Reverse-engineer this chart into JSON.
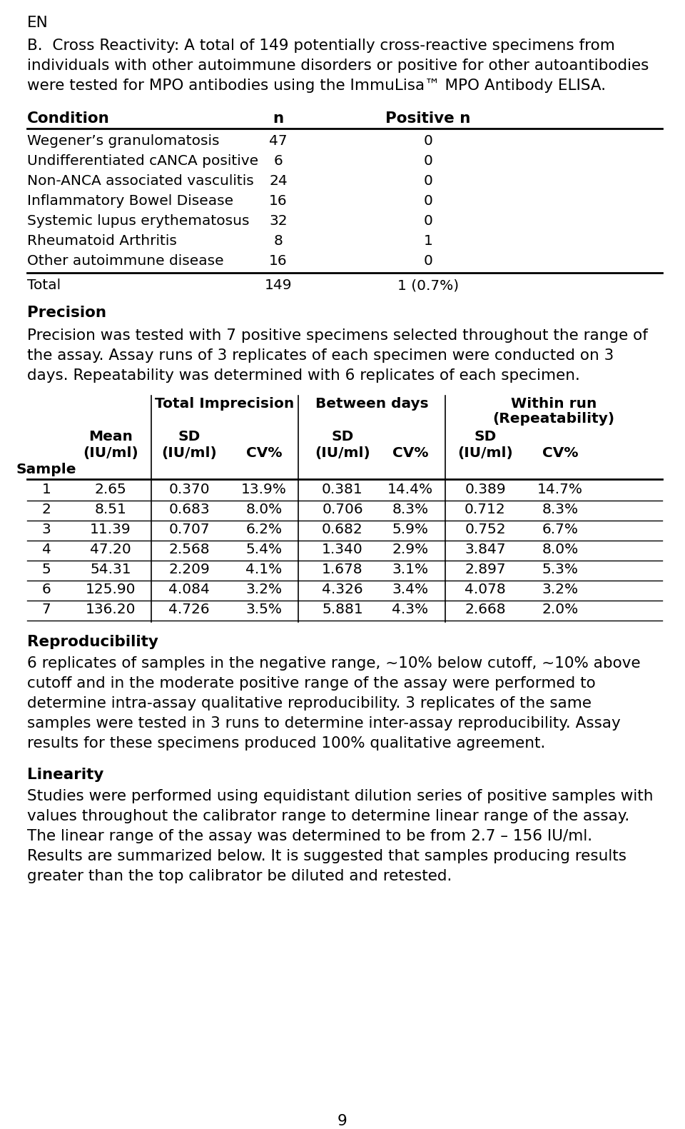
{
  "page_label": "EN",
  "section_b_lines": [
    "B.  Cross Reactivity: A total of 149 potentially cross-reactive specimens from",
    "individuals with other autoimmune disorders or positive for other autoantibodies",
    "were tested for MPO antibodies using the ImmuLisa™ MPO Antibody ELISA."
  ],
  "table1_header": [
    "Condition",
    "n",
    "Positive n"
  ],
  "table1_rows": [
    [
      "Wegener’s granulomatosis",
      "47",
      "0"
    ],
    [
      "Undifferentiated cANCA positive",
      "6",
      "0"
    ],
    [
      "Non-ANCA associated vasculitis",
      "24",
      "0"
    ],
    [
      "Inflammatory Bowel Disease",
      "16",
      "0"
    ],
    [
      "Systemic lupus erythematosus",
      "32",
      "0"
    ],
    [
      "Rheumatoid Arthritis",
      "8",
      "1"
    ],
    [
      "Other autoimmune disease",
      "16",
      "0"
    ]
  ],
  "table1_total": [
    "Total",
    "149",
    "1 (0.7%)"
  ],
  "precision_heading": "Precision",
  "precision_lines": [
    "Precision was tested with 7 positive specimens selected throughout the range of",
    "the assay. Assay runs of 3 replicates of each specimen were conducted on 3",
    "days. Repeatability was determined with 6 replicates of each specimen."
  ],
  "table2_rows": [
    [
      "1",
      "2.65",
      "0.370",
      "13.9%",
      "0.381",
      "14.4%",
      "0.389",
      "14.7%"
    ],
    [
      "2",
      "8.51",
      "0.683",
      "8.0%",
      "0.706",
      "8.3%",
      "0.712",
      "8.3%"
    ],
    [
      "3",
      "11.39",
      "0.707",
      "6.2%",
      "0.682",
      "5.9%",
      "0.752",
      "6.7%"
    ],
    [
      "4",
      "47.20",
      "2.568",
      "5.4%",
      "1.340",
      "2.9%",
      "3.847",
      "8.0%"
    ],
    [
      "5",
      "54.31",
      "2.209",
      "4.1%",
      "1.678",
      "3.1%",
      "2.897",
      "5.3%"
    ],
    [
      "6",
      "125.90",
      "4.084",
      "3.2%",
      "4.326",
      "3.4%",
      "4.078",
      "3.2%"
    ],
    [
      "7",
      "136.20",
      "4.726",
      "3.5%",
      "5.881",
      "4.3%",
      "2.668",
      "2.0%"
    ]
  ],
  "reproducibility_heading": "Reproducibility",
  "reproducibility_lines": [
    "6 replicates of samples in the negative range, ~10% below cutoff, ~10% above",
    "cutoff and in the moderate positive range of the assay were performed to",
    "determine intra-assay qualitative reproducibility. 3 replicates of the same",
    "samples were tested in 3 runs to determine inter-assay reproducibility. Assay",
    "results for these specimens produced 100% qualitative agreement."
  ],
  "linearity_heading": "Linearity",
  "linearity_lines": [
    "Studies were performed using equidistant dilution series of positive samples with",
    "values throughout the calibrator range to determine linear range of the assay.",
    "The linear range of the assay was determined to be from 2.7 – 156 IU/ml.",
    "Results are summarized below. It is suggested that samples producing results",
    "greater than the top calibrator be diluted and retested."
  ],
  "page_number": "9",
  "bg_color": "#ffffff",
  "text_color": "#000000"
}
